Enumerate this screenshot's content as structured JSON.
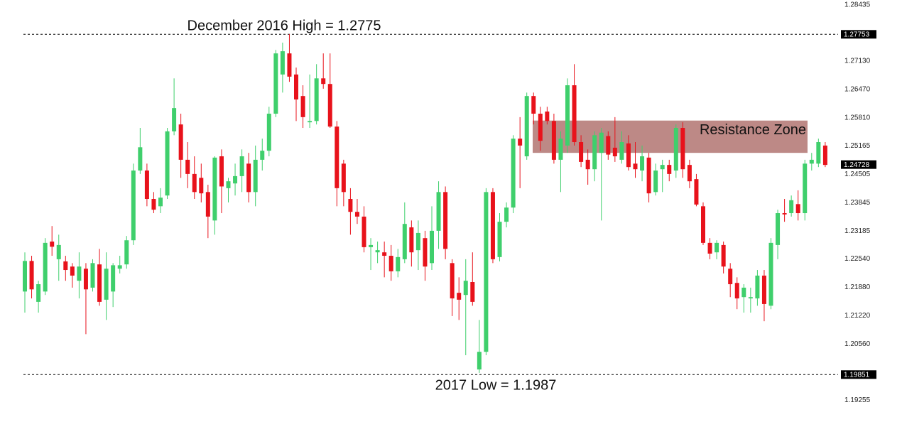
{
  "chart_data": {
    "type": "candlestick",
    "up_color": "#3fcf6c",
    "down_color": "#e8121b",
    "ylim": [
      1.1875,
      1.2855
    ],
    "yticks": [
      1.28435,
      {
        "value": 1.2713,
        "label": "1.27130"
      },
      {
        "value": 1.2647,
        "label": "1.26470"
      },
      {
        "value": 1.2581,
        "label": "1.25810"
      },
      1.25165,
      1.24505,
      1.23845,
      1.23185,
      {
        "value": 1.2254,
        "label": "1.22540"
      },
      {
        "value": 1.2188,
        "label": "1.21880"
      },
      {
        "value": 1.2122,
        "label": "1.21220"
      },
      {
        "value": 1.2056,
        "label": "1.20560"
      },
      1.19255
    ],
    "price_lines": [
      1.27753,
      1.19851
    ],
    "last_price": 1.24728,
    "annotations": [
      "December 2016 High = 1.2775",
      "2017 Low = 1.1987"
    ],
    "zone": {
      "label": "Resistance Zone",
      "low": 1.25,
      "high": 1.2575,
      "color": "#b9837f"
    },
    "open": [
      1.2178,
      1.2249,
      1.2154,
      1.2178,
      1.2294,
      1.2253,
      1.2248,
      1.2236,
      1.2203,
      1.2231,
      1.2187,
      1.2241,
      1.2159,
      1.2178,
      1.2231,
      1.2241,
      1.2297,
      1.2459,
      1.2459,
      1.2393,
      1.2376,
      1.2401,
      1.255,
      1.2566,
      1.2484,
      1.2451,
      1.2442,
      1.2409,
      1.2343,
      1.2492,
      1.2418,
      1.2429,
      1.2446,
      1.2475,
      1.2409,
      1.2484,
      1.2505,
      1.2591,
      1.2682,
      1.2731,
      1.2682,
      1.2632,
      1.2571,
      1.2574,
      1.2673,
      1.266,
      1.2561,
      1.2475,
      1.2393,
      1.2363,
      1.2352,
      1.2281,
      1.2269,
      1.2269,
      1.2261,
      1.2225,
      1.2253,
      1.2327,
      1.2274,
      1.2302,
      1.2244,
      1.2319,
      1.2409,
      1.2244,
      1.2175,
      1.217,
      1.22,
      1.1997,
      1.2038,
      1.2409,
      1.2258,
      1.234,
      1.2373,
      1.2533,
      1.2492,
      1.2632,
      1.2591,
      1.2596,
      1.2574,
      1.2484,
      1.2517,
      1.2657,
      1.2525,
      1.2484,
      1.2462,
      1.25,
      1.2539,
      1.2512,
      1.2484,
      1.2522,
      1.2475,
      1.2459,
      1.2489,
      1.2409,
      1.2462,
      1.2472,
      1.2459,
      1.2558,
      1.2472,
      1.2439,
      1.2376,
      1.2291,
      1.2269,
      1.2286,
      1.2231,
      1.2198,
      1.2165,
      1.2162,
      1.2162,
      1.2215,
      1.2145,
      1.2286,
      1.236,
      1.236,
      1.2381,
      1.236,
      1.2475,
      1.2475,
      1.2517
    ],
    "high": [
      1.2269,
      1.2261,
      1.2203,
      1.2302,
      1.233,
      1.231,
      1.2261,
      1.2244,
      1.2269,
      1.2244,
      1.2253,
      1.2277,
      1.2269,
      1.2244,
      1.2261,
      1.2307,
      1.2475,
      1.2558,
      1.2475,
      1.2409,
      1.2418,
      1.2558,
      1.2673,
      1.2591,
      1.2525,
      1.2492,
      1.2475,
      1.2426,
      1.2492,
      1.2508,
      1.2442,
      1.2475,
      1.2508,
      1.25,
      1.2517,
      1.2533,
      1.2607,
      1.2739,
      1.2756,
      1.2776,
      1.2698,
      1.2657,
      1.2682,
      1.2706,
      1.2731,
      1.2731,
      1.2574,
      1.2484,
      1.2418,
      1.2393,
      1.2376,
      1.2302,
      1.2294,
      1.2294,
      1.2286,
      1.2277,
      1.2385,
      1.2343,
      1.2343,
      1.2319,
      1.2376,
      1.2434,
      1.2422,
      1.2253,
      1.2211,
      1.2253,
      1.2269,
      1.2112,
      1.2418,
      1.2418,
      1.236,
      1.2385,
      1.2541,
      1.2583,
      1.264,
      1.264,
      1.2607,
      1.2607,
      1.2591,
      1.255,
      1.2673,
      1.2706,
      1.2541,
      1.2508,
      1.255,
      1.2558,
      1.255,
      1.2583,
      1.255,
      1.2541,
      1.2525,
      1.2517,
      1.25,
      1.2475,
      1.2484,
      1.2484,
      1.2566,
      1.2571,
      1.2484,
      1.2451,
      1.2385,
      1.2302,
      1.2297,
      1.2294,
      1.2244,
      1.2211,
      1.2195,
      1.2187,
      1.2228,
      1.2228,
      1.2302,
      1.2368,
      1.2393,
      1.2401,
      1.2413,
      1.2484,
      1.25,
      1.2533,
      1.2525
    ],
    "low": [
      1.2129,
      1.2162,
      1.2129,
      1.217,
      1.2261,
      1.2203,
      1.2203,
      1.2187,
      1.2162,
      1.2079,
      1.2178,
      1.2145,
      1.2112,
      1.2142,
      1.222,
      1.2231,
      1.2286,
      1.2451,
      1.2376,
      1.236,
      1.236,
      1.2393,
      1.2541,
      1.2442,
      1.2418,
      1.2393,
      1.2385,
      1.2302,
      1.231,
      1.236,
      1.2385,
      1.2401,
      1.2409,
      1.2385,
      1.2376,
      1.2459,
      1.2492,
      1.2583,
      1.264,
      1.2665,
      1.2574,
      1.2558,
      1.2558,
      1.2566,
      1.2649,
      1.2558,
      1.2376,
      1.2376,
      1.231,
      1.2335,
      1.2269,
      1.2228,
      1.2244,
      1.2211,
      1.2203,
      1.2211,
      1.2244,
      1.2236,
      1.2228,
      1.2203,
      1.2228,
      1.2277,
      1.2253,
      1.2121,
      1.2112,
      1.203,
      1.2145,
      1.1989,
      1.203,
      1.2244,
      1.2248,
      1.2327,
      1.236,
      1.2418,
      1.2484,
      1.2566,
      1.2505,
      1.2566,
      1.2475,
      1.2409,
      1.25,
      1.2517,
      1.2467,
      1.2426,
      1.2434,
      1.2343,
      1.2484,
      1.2479,
      1.2475,
      1.2459,
      1.2442,
      1.2434,
      1.2385,
      1.2401,
      1.2409,
      1.2434,
      1.2442,
      1.2442,
      1.2418,
      1.2376,
      1.2286,
      1.2253,
      1.2253,
      1.222,
      1.2165,
      1.2137,
      1.2129,
      1.2129,
      1.2145,
      1.2109,
      1.2137,
      1.2253,
      1.234,
      1.2352,
      1.2343,
      1.2343,
      1.2459,
      1.2467,
      1.2467
    ],
    "close": [
      1.2249,
      1.2183,
      1.2195,
      1.2291,
      1.2282,
      1.2286,
      1.2228,
      1.2215,
      1.2236,
      1.2183,
      1.2244,
      1.2154,
      1.2231,
      1.2239,
      1.2239,
      1.2297,
      1.2459,
      1.2513,
      1.2393,
      1.2368,
      1.2396,
      1.255,
      1.2604,
      1.2484,
      1.2451,
      1.2409,
      1.2406,
      1.2352,
      1.2489,
      1.2422,
      1.2434,
      1.2446,
      1.2492,
      1.2409,
      1.2484,
      1.2505,
      1.2591,
      1.2731,
      1.2736,
      1.2677,
      1.2624,
      1.2583,
      1.2574,
      1.2673,
      1.266,
      1.2561,
      1.2418,
      1.2409,
      1.2363,
      1.2352,
      1.2281,
      1.2286,
      1.2274,
      1.2261,
      1.2225,
      1.2258,
      1.2335,
      1.2269,
      1.2314,
      1.2236,
      1.2319,
      1.2409,
      1.2277,
      1.2162,
      1.2159,
      1.2203,
      1.2154,
      1.2038,
      1.2409,
      1.2253,
      1.234,
      1.2373,
      1.2533,
      1.2517,
      1.2632,
      1.2591,
      1.2528,
      1.2574,
      1.2484,
      1.2533,
      1.2657,
      1.2525,
      1.2479,
      1.2462,
      1.2541,
      1.2547,
      1.2496,
      1.2492,
      1.2525,
      1.2467,
      1.2462,
      1.2492,
      1.2406,
      1.2459,
      1.2472,
      1.2451,
      1.2558,
      1.2462,
      1.2434,
      1.238,
      1.2291,
      1.2266,
      1.2291,
      1.2236,
      1.2195,
      1.2162,
      1.2187,
      1.2165,
      1.2215,
      1.2149,
      1.2291,
      1.236,
      1.2357,
      1.239,
      1.236,
      1.2475,
      1.2484,
      1.2525,
      1.2472
    ]
  }
}
